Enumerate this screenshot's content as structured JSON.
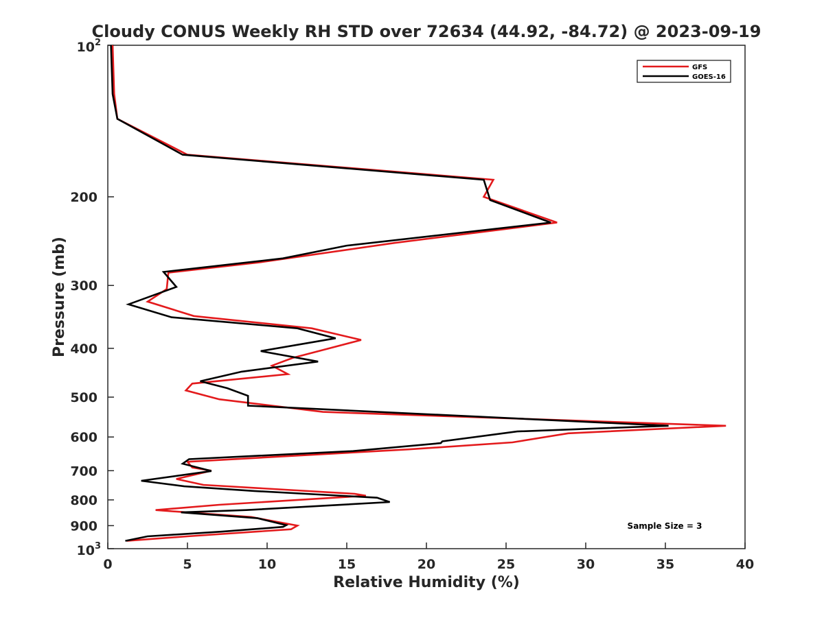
{
  "chart_data": {
    "type": "line",
    "title": "Cloudy CONUS Weekly RH STD over 72634 (44.92, -84.72) @ 2023-09-19",
    "xlabel": "Relative Humidity (%)",
    "ylabel": "Pressure (mb)",
    "xlim": [
      0,
      40
    ],
    "ylim": [
      100,
      1000
    ],
    "y_scale": "log",
    "y_reversed": true,
    "grid": false,
    "legend_position": "top-right",
    "x_ticks": [
      0,
      5,
      10,
      15,
      20,
      25,
      30,
      35,
      40
    ],
    "y_ticks": [
      {
        "value": 100,
        "base": "10",
        "exp": "2"
      },
      {
        "value": 200,
        "label": "200"
      },
      {
        "value": 300,
        "label": "300"
      },
      {
        "value": 400,
        "label": "400"
      },
      {
        "value": 500,
        "label": "500"
      },
      {
        "value": 600,
        "label": "600"
      },
      {
        "value": 700,
        "label": "700"
      },
      {
        "value": 800,
        "label": "800"
      },
      {
        "value": 900,
        "label": "900"
      },
      {
        "value": 1000,
        "base": "10",
        "exp": "3"
      }
    ],
    "annotation": "Sample Size = 3",
    "series": [
      {
        "name": "GFS",
        "color": "#e31a1c",
        "points": [
          [
            0.3,
            100
          ],
          [
            0.4,
            125
          ],
          [
            0.6,
            140
          ],
          [
            5.0,
            165
          ],
          [
            24.2,
            185
          ],
          [
            23.6,
            200
          ],
          [
            28.2,
            225
          ],
          [
            18.0,
            247
          ],
          [
            9.5,
            270
          ],
          [
            3.8,
            283
          ],
          [
            3.7,
            305
          ],
          [
            2.5,
            323
          ],
          [
            5.4,
            345
          ],
          [
            12.8,
            365
          ],
          [
            15.9,
            385
          ],
          [
            11.6,
            418
          ],
          [
            10.3,
            433
          ],
          [
            11.3,
            450
          ],
          [
            5.3,
            470
          ],
          [
            4.9,
            485
          ],
          [
            7.0,
            505
          ],
          [
            13.5,
            535
          ],
          [
            38.8,
            570
          ],
          [
            28.9,
            590
          ],
          [
            25.4,
            615
          ],
          [
            18.9,
            635
          ],
          [
            5.0,
            672
          ],
          [
            5.3,
            690
          ],
          [
            6.5,
            700
          ],
          [
            4.3,
            727
          ],
          [
            6.0,
            747
          ],
          [
            15.5,
            778
          ],
          [
            16.2,
            785
          ],
          [
            7.0,
            818
          ],
          [
            3.0,
            838
          ],
          [
            9.0,
            865
          ],
          [
            11.9,
            900
          ],
          [
            11.5,
            915
          ],
          [
            5.0,
            945
          ],
          [
            1.2,
            965
          ]
        ]
      },
      {
        "name": "GOES-16",
        "color": "#000000",
        "points": [
          [
            0.2,
            100
          ],
          [
            0.3,
            125
          ],
          [
            0.6,
            140
          ],
          [
            4.7,
            165
          ],
          [
            23.6,
            185
          ],
          [
            24.0,
            203
          ],
          [
            27.8,
            225
          ],
          [
            15.0,
            250
          ],
          [
            11.0,
            265
          ],
          [
            3.5,
            282
          ],
          [
            4.3,
            302
          ],
          [
            1.3,
            327
          ],
          [
            4.0,
            347
          ],
          [
            11.9,
            365
          ],
          [
            14.3,
            382
          ],
          [
            9.6,
            405
          ],
          [
            13.2,
            425
          ],
          [
            8.4,
            445
          ],
          [
            5.8,
            465
          ],
          [
            7.5,
            480
          ],
          [
            8.8,
            497
          ],
          [
            8.8,
            520
          ],
          [
            35.2,
            570
          ],
          [
            25.7,
            585
          ],
          [
            21.0,
            612
          ],
          [
            20.9,
            617
          ],
          [
            15.4,
            640
          ],
          [
            5.1,
            664
          ],
          [
            4.7,
            678
          ],
          [
            6.5,
            701
          ],
          [
            2.1,
            733
          ],
          [
            4.8,
            752
          ],
          [
            9.2,
            768
          ],
          [
            16.9,
            792
          ],
          [
            17.7,
            808
          ],
          [
            8.7,
            838
          ],
          [
            4.6,
            847
          ],
          [
            9.4,
            870
          ],
          [
            11.2,
            898
          ],
          [
            11.0,
            905
          ],
          [
            7.2,
            925
          ],
          [
            2.5,
            945
          ],
          [
            1.1,
            965
          ]
        ]
      }
    ]
  }
}
